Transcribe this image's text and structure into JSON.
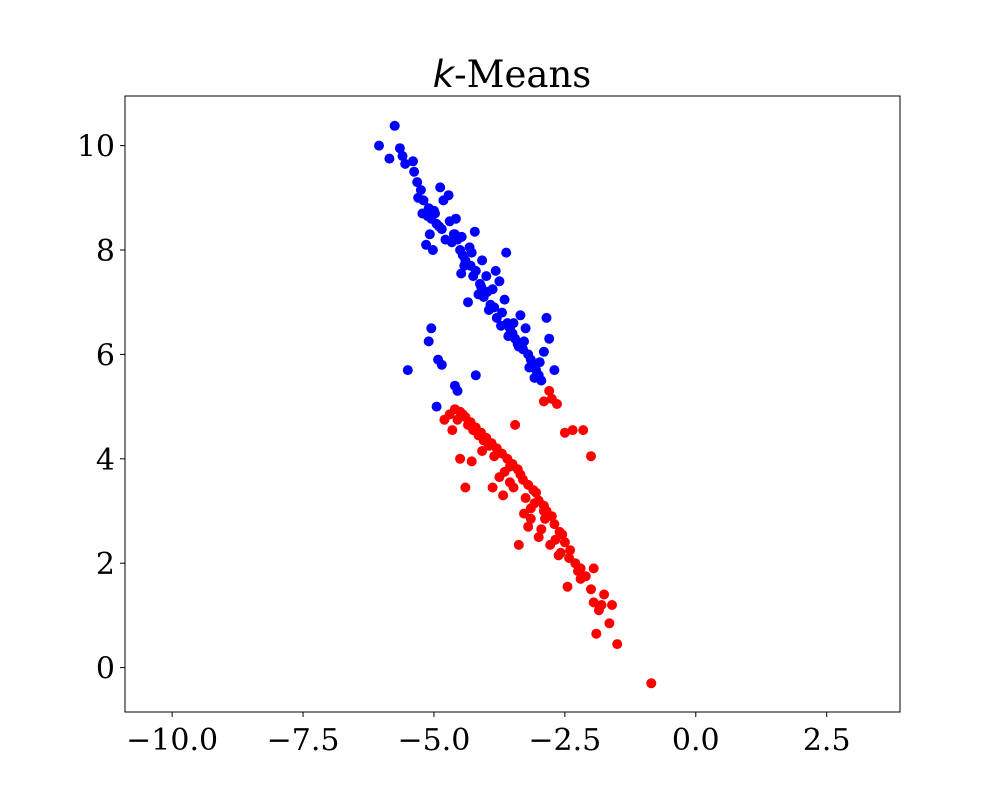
{
  "chart_data": {
    "type": "scatter",
    "title": {
      "italic": "k",
      "rest": "-Means"
    },
    "xlabel": "",
    "ylabel": "",
    "xlim": [
      -10.9,
      3.9
    ],
    "ylim": [
      -0.85,
      10.95
    ],
    "xticks": [
      {
        "value": -10.0,
        "label": "−10.0"
      },
      {
        "value": -7.5,
        "label": "−7.5"
      },
      {
        "value": -5.0,
        "label": "−5.0"
      },
      {
        "value": -2.5,
        "label": "−2.5"
      },
      {
        "value": 0.0,
        "label": "0.0"
      },
      {
        "value": 2.5,
        "label": "2.5"
      }
    ],
    "yticks": [
      {
        "value": 0,
        "label": "0"
      },
      {
        "value": 2,
        "label": "2"
      },
      {
        "value": 4,
        "label": "4"
      },
      {
        "value": 6,
        "label": "6"
      },
      {
        "value": 8,
        "label": "8"
      },
      {
        "value": 10,
        "label": "10"
      }
    ],
    "grid": false,
    "legend": "none",
    "series": [
      {
        "color": "#0000ff",
        "x": [
          -6.05,
          -5.75,
          -5.85,
          -5.65,
          -5.6,
          -5.55,
          -5.4,
          -5.38,
          -5.32,
          -5.25,
          -5.2,
          -5.1,
          -5.05,
          -5.3,
          -4.98,
          -4.95,
          -4.85,
          -4.7,
          -4.6,
          -4.55,
          -4.5,
          -4.45,
          -4.4,
          -4.3,
          -4.25,
          -4.2,
          -4.1,
          -4.05,
          -3.98,
          -3.92,
          -3.85,
          -3.8,
          -3.7,
          -3.6,
          -3.55,
          -3.5,
          -3.45,
          -3.4,
          -3.3,
          -3.2,
          -3.15,
          -3.1,
          -3.05,
          -3.0,
          -2.95,
          -2.8,
          -2.7,
          -2.85,
          -3.25,
          -3.35,
          -3.65,
          -3.75,
          -4.0,
          -4.15,
          -4.35,
          -4.62,
          -4.78,
          -4.9,
          -5.0,
          -5.12,
          -4.66,
          -4.42,
          -4.28,
          -4.12,
          -3.95,
          -3.88,
          -3.72,
          -3.58,
          -3.48,
          -3.38,
          -3.28,
          -3.18,
          -3.08,
          -2.98,
          -2.9,
          -3.62,
          -3.82,
          -4.08,
          -4.32,
          -4.48,
          -5.02,
          -5.08,
          -5.15,
          -5.22,
          -4.88,
          -4.82,
          -4.72,
          -4.58,
          -4.47,
          -4.22,
          -5.5,
          -5.05,
          -4.92,
          -4.6,
          -4.2,
          -4.95,
          -5.1,
          -4.85,
          -4.55
        ],
        "y": [
          10.0,
          10.38,
          9.75,
          9.95,
          9.8,
          9.65,
          9.7,
          9.5,
          9.3,
          9.15,
          8.95,
          8.8,
          8.6,
          9.0,
          8.7,
          8.5,
          8.4,
          8.55,
          8.3,
          8.2,
          8.0,
          7.9,
          7.8,
          7.7,
          7.5,
          7.6,
          7.3,
          7.1,
          7.2,
          6.95,
          6.9,
          6.7,
          6.8,
          6.6,
          6.5,
          6.4,
          6.3,
          6.2,
          6.1,
          6.0,
          5.9,
          5.8,
          5.7,
          5.6,
          5.5,
          6.3,
          5.7,
          6.7,
          6.5,
          6.75,
          7.05,
          7.4,
          7.5,
          7.15,
          7.0,
          8.3,
          8.2,
          8.45,
          8.75,
          8.65,
          8.15,
          7.7,
          7.95,
          7.35,
          6.85,
          7.25,
          6.55,
          6.35,
          6.6,
          6.15,
          6.25,
          5.75,
          5.55,
          5.85,
          6.05,
          7.95,
          7.6,
          7.8,
          8.05,
          7.55,
          8.0,
          8.3,
          8.1,
          8.7,
          9.2,
          8.95,
          9.05,
          8.6,
          8.25,
          8.35,
          5.7,
          6.5,
          5.9,
          5.4,
          5.6,
          5.0,
          6.25,
          5.8,
          5.3
        ]
      },
      {
        "color": "#ff0000",
        "x": [
          -0.85,
          -1.5,
          -1.65,
          -1.6,
          -1.75,
          -1.85,
          -1.9,
          -2.0,
          -2.1,
          -2.2,
          -2.3,
          -2.4,
          -2.5,
          -2.55,
          -2.6,
          -2.7,
          -2.75,
          -2.85,
          -2.9,
          -3.0,
          -3.05,
          -3.1,
          -3.2,
          -3.3,
          -3.35,
          -3.4,
          -3.5,
          -3.6,
          -3.7,
          -3.8,
          -3.9,
          -4.0,
          -4.1,
          -4.2,
          -4.3,
          -4.4,
          -4.5,
          -4.6,
          -4.7,
          -4.8,
          -2.0,
          -2.15,
          -2.35,
          -2.5,
          -2.65,
          -2.75,
          -2.8,
          -2.9,
          -3.45,
          -4.25,
          -4.5,
          -1.8,
          -1.95,
          -2.25,
          -2.45,
          -2.62,
          -2.78,
          -2.95,
          -3.15,
          -3.25,
          -3.55,
          -3.65,
          -3.75,
          -3.85,
          -3.95,
          -4.05,
          -4.15,
          -4.35,
          -4.45,
          -4.55,
          -4.65,
          -3.38,
          -2.68,
          -2.88,
          -3.08,
          -3.28,
          -3.48,
          -3.68,
          -3.88,
          -4.08,
          -4.28,
          -2.58,
          -3.0,
          -3.2,
          -2.42,
          -2.2,
          -1.95,
          -3.55,
          -3.15,
          -2.9,
          -4.4
        ],
        "y": [
          -0.3,
          0.45,
          0.85,
          1.2,
          1.4,
          1.1,
          0.65,
          1.5,
          1.75,
          1.9,
          2.0,
          2.25,
          2.4,
          2.55,
          2.6,
          2.75,
          2.9,
          3.0,
          3.1,
          3.2,
          3.35,
          3.4,
          3.5,
          3.6,
          3.7,
          3.8,
          3.9,
          4.0,
          4.1,
          4.2,
          4.3,
          4.4,
          4.5,
          4.6,
          4.7,
          4.8,
          4.9,
          4.95,
          4.85,
          4.75,
          4.05,
          4.55,
          4.55,
          4.5,
          5.05,
          5.15,
          5.3,
          5.1,
          4.65,
          4.55,
          4.0,
          1.2,
          1.9,
          1.85,
          1.55,
          2.15,
          2.35,
          2.65,
          3.05,
          3.25,
          3.55,
          3.75,
          3.65,
          4.05,
          4.25,
          4.35,
          4.45,
          4.65,
          4.85,
          4.75,
          4.55,
          2.35,
          2.45,
          2.85,
          3.15,
          2.95,
          3.45,
          3.3,
          3.45,
          4.15,
          3.95,
          2.2,
          2.5,
          2.7,
          2.1,
          1.7,
          1.25,
          3.85,
          2.85,
          3.0,
          3.45
        ]
      }
    ]
  }
}
